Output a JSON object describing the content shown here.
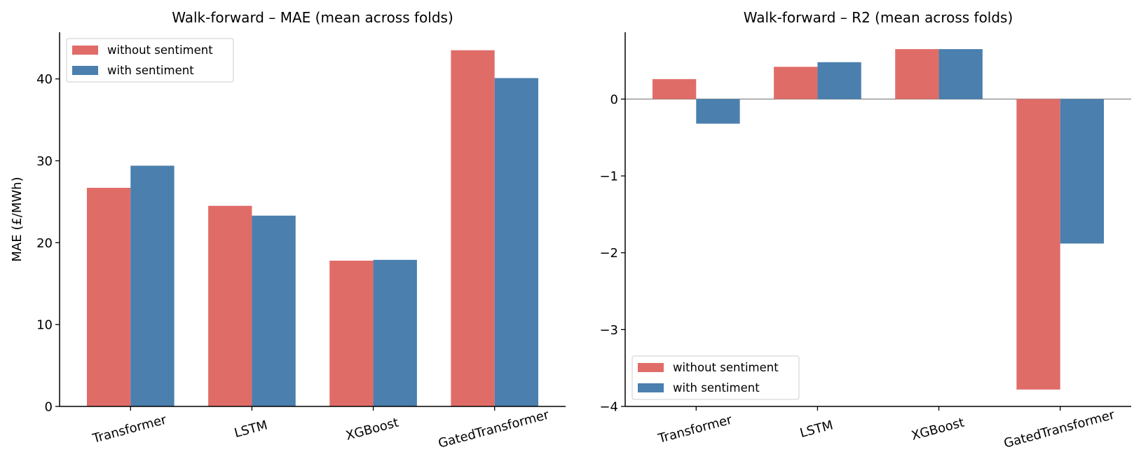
{
  "chart_data": [
    {
      "type": "bar",
      "title": "Walk-forward – MAE (mean across folds)",
      "xlabel": "",
      "ylabel": "MAE (£/MWh)",
      "ylim": [
        0,
        45.7
      ],
      "yticks": [
        0,
        10,
        20,
        30,
        40
      ],
      "ytick_labels": [
        "0",
        "10",
        "20",
        "30",
        "40"
      ],
      "categories": [
        "Transformer",
        "LSTM",
        "XGBoost",
        "GatedTransformer"
      ],
      "series": [
        {
          "name": "without sentiment",
          "color": "#e06c68",
          "values": [
            26.7,
            24.5,
            17.8,
            43.5
          ]
        },
        {
          "name": "with sentiment",
          "color": "#4a7fae",
          "values": [
            29.4,
            23.3,
            17.9,
            40.1
          ]
        }
      ],
      "legend": "upper-left",
      "grid": false
    },
    {
      "type": "bar",
      "title": "Walk-forward – R2 (mean across folds)",
      "xlabel": "",
      "ylabel": "",
      "ylim": [
        -4.0,
        0.87
      ],
      "yticks": [
        0,
        -1,
        -2,
        -3,
        -4
      ],
      "ytick_labels": [
        "0",
        "−1",
        "−2",
        "−3",
        "−4"
      ],
      "categories": [
        "Transformer",
        "LSTM",
        "XGBoost",
        "GatedTransformer"
      ],
      "series": [
        {
          "name": "without sentiment",
          "color": "#e06c68",
          "values": [
            0.26,
            0.42,
            0.65,
            -3.78
          ]
        },
        {
          "name": "with sentiment",
          "color": "#4a7fae",
          "values": [
            -0.32,
            0.48,
            0.65,
            -1.88
          ]
        }
      ],
      "legend": "lower-left",
      "grid": false,
      "zero_line": true
    }
  ]
}
